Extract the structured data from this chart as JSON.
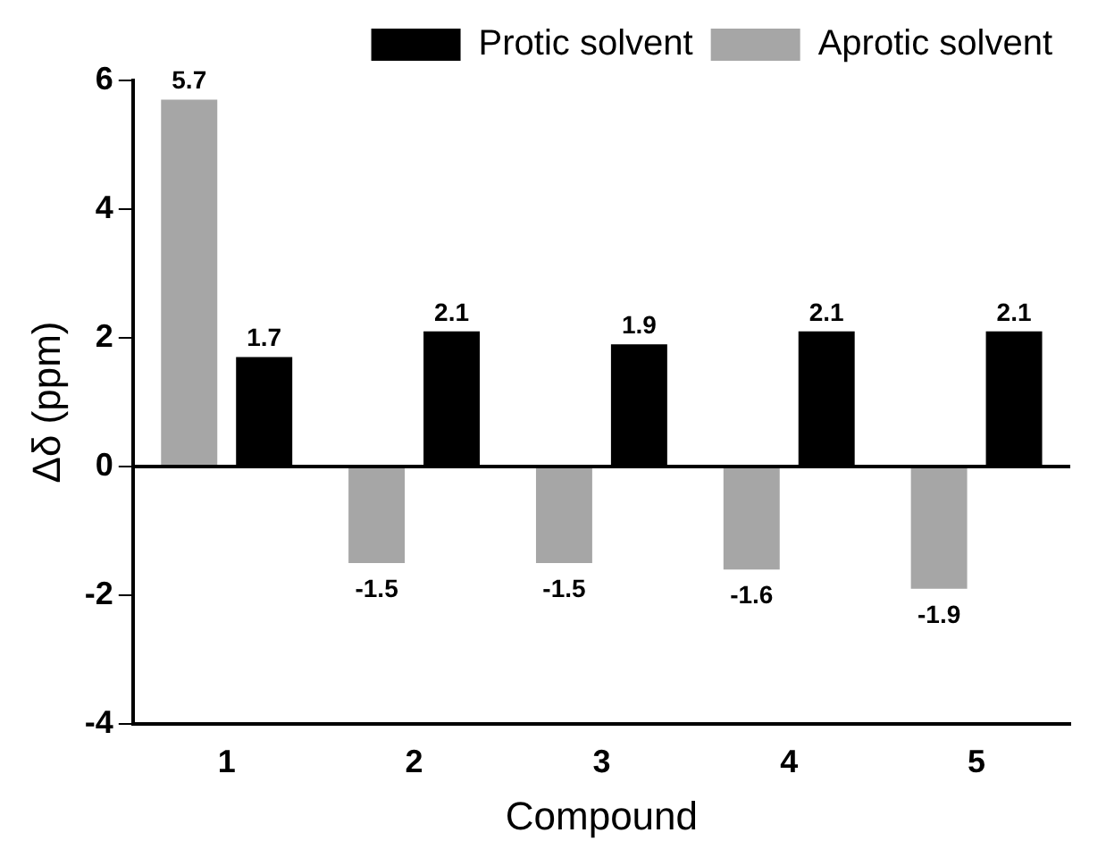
{
  "chart_data": {
    "type": "bar",
    "xlabel": "Compound",
    "ylabel": "Δδ (ppm)",
    "categories": [
      "1",
      "2",
      "3",
      "4",
      "5"
    ],
    "series": [
      {
        "name": "Aprotic solvent",
        "color": "#a6a6a6",
        "values": [
          5.7,
          -1.5,
          -1.5,
          -1.6,
          -1.9
        ]
      },
      {
        "name": "Protic solvent",
        "color": "#000000",
        "values": [
          1.7,
          2.1,
          1.9,
          2.1,
          2.1
        ]
      }
    ],
    "ref_lines": [
      {
        "axis": "y",
        "value": 0,
        "color": "#000000"
      }
    ],
    "ylim": [
      -4,
      6
    ],
    "yticks": [
      -4,
      -2,
      0,
      2,
      4,
      6
    ],
    "grid": false,
    "legend": "top right",
    "data_labels": true
  }
}
